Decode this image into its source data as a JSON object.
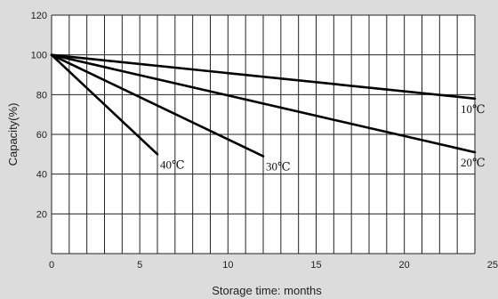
{
  "chart_data": {
    "type": "line",
    "xlabel": "Storage  time: months",
    "ylabel": "Capacity(%)",
    "xlim": [
      0,
      24
    ],
    "ylim": [
      0,
      120
    ],
    "x_ticks": [
      0,
      5,
      10,
      15,
      20,
      25
    ],
    "y_ticks": [
      20,
      40,
      60,
      80,
      100,
      120
    ],
    "x_gridlines": [
      0,
      1,
      2,
      3,
      4,
      5,
      6,
      7,
      8,
      9,
      10,
      11,
      12,
      13,
      14,
      15,
      16,
      17,
      18,
      19,
      20,
      21,
      22,
      23,
      24
    ],
    "y_gridlines": [
      0,
      20,
      40,
      60,
      80,
      100,
      120
    ],
    "grid": true,
    "colors": {
      "background": "#dcdcdc",
      "plot_background": "#ffffff",
      "grid": "#222222",
      "line": "#000000"
    },
    "series": [
      {
        "label": "10℃",
        "x": [
          0,
          24
        ],
        "y": [
          100,
          78
        ]
      },
      {
        "label": "20℃",
        "x": [
          0,
          24
        ],
        "y": [
          100,
          51
        ]
      },
      {
        "label": "30℃",
        "x": [
          0,
          12
        ],
        "y": [
          100,
          49
        ]
      },
      {
        "label": "40℃",
        "x": [
          0,
          6
        ],
        "y": [
          100,
          50
        ]
      }
    ]
  }
}
